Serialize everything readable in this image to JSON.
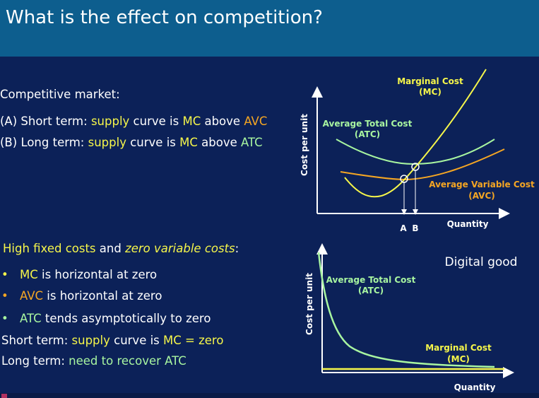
{
  "title": "What is the effect on competition?",
  "colors": {
    "yellow": "#f6f64a",
    "orange": "#f5a623",
    "green": "#a8f5a0",
    "header": "#0d5e8e",
    "background": "#0c2158"
  },
  "top_section": {
    "heading": "Competitive market:",
    "line_a": {
      "prefix": "(A) Short term: ",
      "w1": "supply",
      "t1": " curve is ",
      "w2": "MC",
      "t2": " above ",
      "w3": "AVC"
    },
    "line_b": {
      "prefix": "(B) Long term: ",
      "w1": "supply",
      "t1": " curve is ",
      "w2": "MC",
      "t2": " above ",
      "w3": "ATC"
    }
  },
  "bottom_section": {
    "heading": {
      "p1": "High fixed costs",
      "p2": " and ",
      "p3": "zero variable costs",
      "p4": ":"
    },
    "bullets": [
      {
        "colored": "MC",
        "rest": " is horizontal at zero"
      },
      {
        "colored": "AVC",
        "rest": " is horizontal at zero"
      },
      {
        "colored": "ATC",
        "rest": " tends asymptotically to zero"
      }
    ],
    "bullet_symbol": "•",
    "short_term": {
      "prefix": "Short term: ",
      "w1": "supply",
      "t1": " curve is ",
      "w2": "MC = zero"
    },
    "long_term": {
      "prefix": "Long term: ",
      "w1": "need to recover ATC"
    }
  },
  "diagram1": {
    "ylabel": "Cost per unit",
    "xlabel": "Quantity",
    "mc_label": [
      "Marginal Cost",
      "(MC)"
    ],
    "atc_label": [
      "Average Total Cost",
      "(ATC)"
    ],
    "avc_label": [
      "Average Variable Cost",
      "(AVC)"
    ],
    "point_a": "A",
    "point_b": "B"
  },
  "diagram2": {
    "title": "Digital good",
    "ylabel": "Cost per unit",
    "xlabel": "Quantity",
    "atc_label": [
      "Average Total Cost",
      "(ATC)"
    ],
    "mc_label": [
      "Marginal Cost",
      "(MC)"
    ]
  }
}
